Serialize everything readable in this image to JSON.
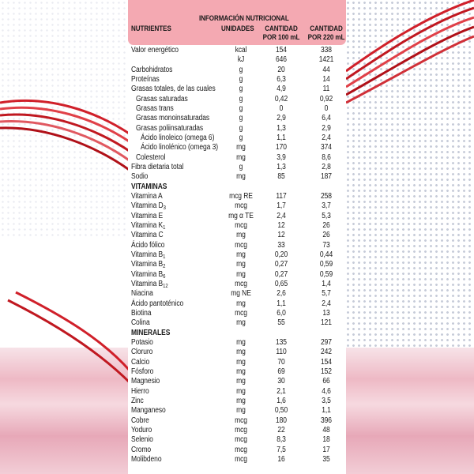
{
  "header": {
    "title": "INFORMACIÓN NUTRICIONAL",
    "col_nutrient": "NUTRIENTES",
    "col_units": "UNIDADES",
    "col_100_l1": "CANTIDAD",
    "col_100_l2": "POR 100 mL",
    "col_220_l1": "CANTIDAD",
    "col_220_l2": "POR 220 mL"
  },
  "colors": {
    "header": "#f4a9b2",
    "ribbon": "#d0202a",
    "liquid": "#eeb9c5"
  },
  "rows": [
    {
      "name": "Valor energético",
      "sub": "",
      "indent": 0,
      "unit": "kcal",
      "v100": "154",
      "v220": "338"
    },
    {
      "name": "",
      "sub": "",
      "indent": 0,
      "unit": "kJ",
      "v100": "646",
      "v220": "1421"
    },
    {
      "name": "Carbohidratos",
      "sub": "",
      "indent": 0,
      "unit": "g",
      "v100": "20",
      "v220": "44"
    },
    {
      "name": "Proteínas",
      "sub": "",
      "indent": 0,
      "unit": "g",
      "v100": "6,3",
      "v220": "14"
    },
    {
      "name": "Grasas totales, de las cuales",
      "sub": "",
      "indent": 0,
      "unit": "g",
      "v100": "4,9",
      "v220": "11"
    },
    {
      "name": "Grasas saturadas",
      "sub": "",
      "indent": 1,
      "unit": "g",
      "v100": "0,42",
      "v220": "0,92"
    },
    {
      "name": "Grasas trans",
      "sub": "",
      "indent": 1,
      "unit": "g",
      "v100": "0",
      "v220": "0"
    },
    {
      "name": "Grasas monoinsaturadas",
      "sub": "",
      "indent": 1,
      "unit": "g",
      "v100": "2,9",
      "v220": "6,4"
    },
    {
      "name": "Grasas poliinsaturadas",
      "sub": "",
      "indent": 1,
      "unit": "g",
      "v100": "1,3",
      "v220": "2,9"
    },
    {
      "name": "Ácido linoleico (omega 6)",
      "sub": "",
      "indent": 2,
      "unit": "g",
      "v100": "1,1",
      "v220": "2,4"
    },
    {
      "name": "Ácido linolénico (omega 3)",
      "sub": "",
      "indent": 2,
      "unit": "mg",
      "v100": "170",
      "v220": "374"
    },
    {
      "name": "Colesterol",
      "sub": "",
      "indent": 1,
      "unit": "mg",
      "v100": "3,9",
      "v220": "8,6"
    },
    {
      "name": "Fibra dietaria total",
      "sub": "",
      "indent": 0,
      "unit": "g",
      "v100": "1,3",
      "v220": "2,8"
    },
    {
      "name": "Sodio",
      "sub": "",
      "indent": 0,
      "unit": "mg",
      "v100": "85",
      "v220": "187"
    },
    {
      "name": "VITAMINAS",
      "section": true
    },
    {
      "name": "Vitamina A",
      "sub": "",
      "indent": 0,
      "unit": "mcg RE",
      "v100": "117",
      "v220": "258"
    },
    {
      "name": "Vitamina D",
      "sub": "3",
      "indent": 0,
      "unit": "mcg",
      "v100": "1,7",
      "v220": "3,7"
    },
    {
      "name": "Vitamina E",
      "sub": "",
      "indent": 0,
      "unit": "mg α TE",
      "v100": "2,4",
      "v220": "5,3"
    },
    {
      "name": "Vitamina K",
      "sub": "1",
      "indent": 0,
      "unit": "mcg",
      "v100": "12",
      "v220": "26"
    },
    {
      "name": "Vitamina C",
      "sub": "",
      "indent": 0,
      "unit": "mg",
      "v100": "12",
      "v220": "26"
    },
    {
      "name": "Ácido fólico",
      "sub": "",
      "indent": 0,
      "unit": "mcg",
      "v100": "33",
      "v220": "73"
    },
    {
      "name": "Vitamina B",
      "sub": "1",
      "indent": 0,
      "unit": "mg",
      "v100": "0,20",
      "v220": "0,44"
    },
    {
      "name": "Vitamina B",
      "sub": "2",
      "indent": 0,
      "unit": "mg",
      "v100": "0,27",
      "v220": "0,59"
    },
    {
      "name": "Vitamina B",
      "sub": "6",
      "indent": 0,
      "unit": "mg",
      "v100": "0,27",
      "v220": "0,59"
    },
    {
      "name": "Vitamina B",
      "sub": "12",
      "indent": 0,
      "unit": "mcg",
      "v100": "0,65",
      "v220": "1,4"
    },
    {
      "name": "Niacina",
      "sub": "",
      "indent": 0,
      "unit": "mg NE",
      "v100": "2,6",
      "v220": "5,7"
    },
    {
      "name": "Ácido pantoténico",
      "sub": "",
      "indent": 0,
      "unit": "mg",
      "v100": "1,1",
      "v220": "2,4"
    },
    {
      "name": "Biotina",
      "sub": "",
      "indent": 0,
      "unit": "mcg",
      "v100": "6,0",
      "v220": "13"
    },
    {
      "name": "Colina",
      "sub": "",
      "indent": 0,
      "unit": "mg",
      "v100": "55",
      "v220": "121"
    },
    {
      "name": "MINERALES",
      "section": true
    },
    {
      "name": "Potasio",
      "sub": "",
      "indent": 0,
      "unit": "mg",
      "v100": "135",
      "v220": "297"
    },
    {
      "name": "Cloruro",
      "sub": "",
      "indent": 0,
      "unit": "mg",
      "v100": "110",
      "v220": "242"
    },
    {
      "name": "Calcio",
      "sub": "",
      "indent": 0,
      "unit": "mg",
      "v100": "70",
      "v220": "154"
    },
    {
      "name": "Fósforo",
      "sub": "",
      "indent": 0,
      "unit": "mg",
      "v100": "69",
      "v220": "152"
    },
    {
      "name": "Magnesio",
      "sub": "",
      "indent": 0,
      "unit": "mg",
      "v100": "30",
      "v220": "66"
    },
    {
      "name": "Hierro",
      "sub": "",
      "indent": 0,
      "unit": "mg",
      "v100": "2,1",
      "v220": "4,6"
    },
    {
      "name": "Zinc",
      "sub": "",
      "indent": 0,
      "unit": "mg",
      "v100": "1,6",
      "v220": "3,5"
    },
    {
      "name": "Manganeso",
      "sub": "",
      "indent": 0,
      "unit": "mg",
      "v100": "0,50",
      "v220": "1,1"
    },
    {
      "name": "Cobre",
      "sub": "",
      "indent": 0,
      "unit": "mcg",
      "v100": "180",
      "v220": "396"
    },
    {
      "name": "Yoduro",
      "sub": "",
      "indent": 0,
      "unit": "mcg",
      "v100": "22",
      "v220": "48"
    },
    {
      "name": "Selenio",
      "sub": "",
      "indent": 0,
      "unit": "mcg",
      "v100": "8,3",
      "v220": "18"
    },
    {
      "name": "Cromo",
      "sub": "",
      "indent": 0,
      "unit": "mcg",
      "v100": "7,5",
      "v220": "17"
    },
    {
      "name": "Molibdeno",
      "sub": "",
      "indent": 0,
      "unit": "mcg",
      "v100": "16",
      "v220": "35"
    }
  ]
}
